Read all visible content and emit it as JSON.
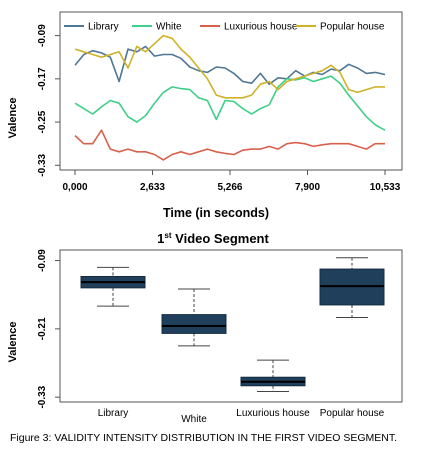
{
  "chart_data": [
    {
      "type": "line",
      "title": "",
      "xlabel": "Time (in seconds)",
      "ylabel": "Valence",
      "x_ticks": [
        "0,000",
        "2,633",
        "5,266",
        "7,900",
        "10,533"
      ],
      "x_tick_values": [
        0,
        2633,
        5266,
        7900,
        10533
      ],
      "y_ticks": [
        "-0.09",
        "-0.17",
        "-0.25",
        "-0.33"
      ],
      "y_tick_values": [
        -0.09,
        -0.17,
        -0.25,
        -0.33
      ],
      "xlim": [
        0,
        10533
      ],
      "ylim": [
        -0.335,
        -0.05
      ],
      "legend_position": "top",
      "x": [
        0,
        300,
        600,
        900,
        1200,
        1500,
        1800,
        2100,
        2400,
        2700,
        3000,
        3300,
        3600,
        3900,
        4200,
        4500,
        4800,
        5100,
        5400,
        5700,
        6000,
        6300,
        6600,
        6900,
        7200,
        7500,
        7800,
        8100,
        8400,
        8700,
        9000,
        9300,
        9600,
        9900,
        10200,
        10533
      ],
      "series": [
        {
          "name": "Library",
          "color": "#4f7796",
          "values": [
            -0.145,
            -0.125,
            -0.118,
            -0.122,
            -0.13,
            -0.175,
            -0.115,
            -0.12,
            -0.11,
            -0.128,
            -0.125,
            -0.125,
            -0.132,
            -0.148,
            -0.155,
            -0.158,
            -0.148,
            -0.15,
            -0.16,
            -0.175,
            -0.178,
            -0.16,
            -0.18,
            -0.168,
            -0.17,
            -0.155,
            -0.165,
            -0.158,
            -0.162,
            -0.152,
            -0.155,
            -0.143,
            -0.15,
            -0.16,
            -0.158,
            -0.162
          ]
        },
        {
          "name": "White",
          "color": "#3ecf88",
          "values": [
            -0.215,
            -0.225,
            -0.235,
            -0.222,
            -0.21,
            -0.215,
            -0.24,
            -0.25,
            -0.238,
            -0.215,
            -0.195,
            -0.185,
            -0.188,
            -0.19,
            -0.205,
            -0.21,
            -0.245,
            -0.21,
            -0.212,
            -0.225,
            -0.235,
            -0.225,
            -0.218,
            -0.185,
            -0.17,
            -0.172,
            -0.168,
            -0.175,
            -0.17,
            -0.165,
            -0.178,
            -0.2,
            -0.22,
            -0.24,
            -0.255,
            -0.265
          ]
        },
        {
          "name": "Luxurious house",
          "color": "#d9614c",
          "values": [
            -0.275,
            -0.29,
            -0.29,
            -0.265,
            -0.3,
            -0.305,
            -0.3,
            -0.305,
            -0.305,
            -0.31,
            -0.32,
            -0.31,
            -0.305,
            -0.31,
            -0.305,
            -0.3,
            -0.305,
            -0.308,
            -0.31,
            -0.302,
            -0.3,
            -0.3,
            -0.295,
            -0.3,
            -0.29,
            -0.288,
            -0.29,
            -0.295,
            -0.292,
            -0.29,
            -0.29,
            -0.29,
            -0.295,
            -0.3,
            -0.29,
            -0.29
          ]
        },
        {
          "name": "Popular house",
          "color": "#cfb228",
          "values": [
            -0.115,
            -0.12,
            -0.125,
            -0.13,
            -0.125,
            -0.12,
            -0.15,
            -0.11,
            -0.12,
            -0.105,
            -0.09,
            -0.095,
            -0.115,
            -0.13,
            -0.15,
            -0.17,
            -0.2,
            -0.205,
            -0.205,
            -0.205,
            -0.2,
            -0.18,
            -0.175,
            -0.19,
            -0.175,
            -0.17,
            -0.165,
            -0.16,
            -0.155,
            -0.145,
            -0.158,
            -0.19,
            -0.195,
            -0.19,
            -0.185,
            -0.185
          ]
        }
      ]
    },
    {
      "type": "box",
      "title": "1st Video Segment",
      "title_main": "1",
      "title_sup": "st",
      "title_rest": " Video Segment",
      "ylabel": "Valence",
      "categories": [
        "Library",
        "White",
        "Luxurious house",
        "Popular house"
      ],
      "y_ticks": [
        "-0.09",
        "-0.21",
        "-0.33"
      ],
      "y_tick_values": [
        -0.09,
        -0.21,
        -0.33
      ],
      "ylim": [
        -0.335,
        -0.075
      ],
      "box_color": "#1f3f5b",
      "boxes": [
        {
          "whisker_low": -0.17,
          "q1": -0.138,
          "median": -0.128,
          "q3": -0.118,
          "whisker_high": -0.102
        },
        {
          "whisker_low": -0.24,
          "q1": -0.218,
          "median": -0.205,
          "q3": -0.185,
          "whisker_high": -0.14
        },
        {
          "whisker_low": -0.32,
          "q1": -0.31,
          "median": -0.303,
          "q3": -0.295,
          "whisker_high": -0.265
        },
        {
          "whisker_low": -0.19,
          "q1": -0.168,
          "median": -0.135,
          "q3": -0.105,
          "whisker_high": -0.085
        }
      ]
    }
  ],
  "caption": "Figure 3: VALIDITY INTENSITY DISTRIBUTION IN THE FIRST VIDEO SEGMENT."
}
